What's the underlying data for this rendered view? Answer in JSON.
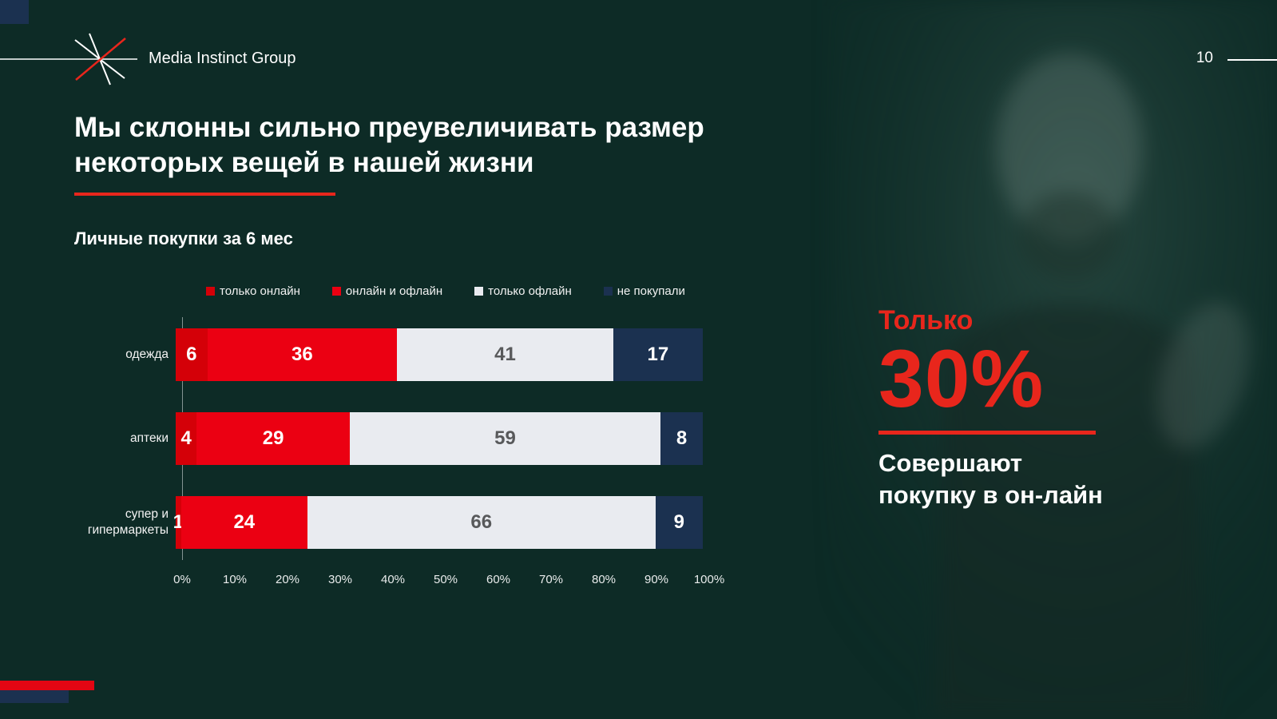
{
  "slide": {
    "brand": "Media Instinct Group",
    "page_number": "10",
    "title_line1": "Мы склонны сильно преувеличивать размер",
    "title_line2": "некоторых вещей в нашей жизни",
    "chart_title": "Личные покупки за 6 мес"
  },
  "chart_data": {
    "type": "bar",
    "orientation": "horizontal",
    "stacked": true,
    "title": "Личные покупки за 6 мес",
    "categories": [
      "одежда",
      "аптеки",
      "супер и\nгипермаркеты"
    ],
    "series": [
      {
        "name": "только онлайн",
        "values": [
          6,
          4,
          1
        ],
        "color": "#d40008",
        "label_color": "#ffffff"
      },
      {
        "name": "онлайн и офлайн",
        "values": [
          36,
          29,
          24
        ],
        "color": "#eb0012",
        "label_color": "#ffffff"
      },
      {
        "name": "только офлайн",
        "values": [
          41,
          59,
          66
        ],
        "color": "#e9ebf0",
        "label_color": "#58595b"
      },
      {
        "name": "не покупали",
        "values": [
          17,
          8,
          9
        ],
        "color": "#1b3150",
        "label_color": "#ffffff"
      }
    ],
    "x_ticks": [
      "0%",
      "10%",
      "20%",
      "30%",
      "40%",
      "50%",
      "60%",
      "70%",
      "80%",
      "90%",
      "100%"
    ],
    "xlim": [
      0,
      100
    ],
    "legend_position": "top",
    "grid": false
  },
  "callout": {
    "kicker": "Только",
    "stat": "30%",
    "line1": "Совершают",
    "line2": "покупку в он-лайн"
  },
  "colors": {
    "background": "#0d2b26",
    "accent_red": "#e8261c",
    "navy": "#1b3150",
    "text": "#ffffff"
  }
}
